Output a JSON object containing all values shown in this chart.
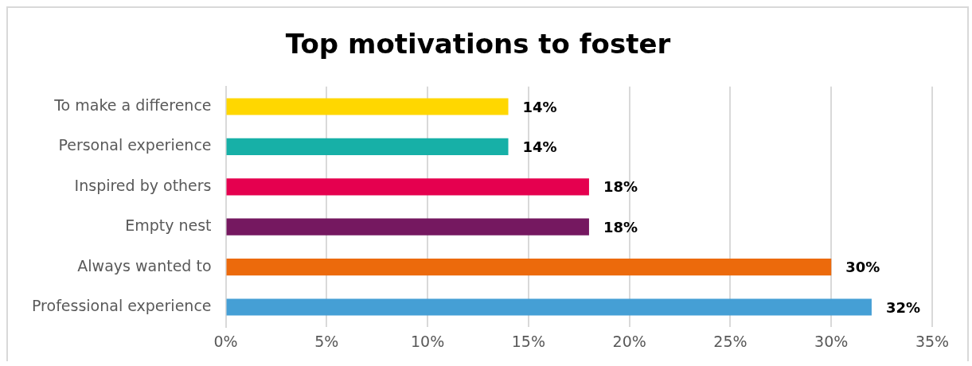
{
  "chart_data": {
    "type": "bar",
    "orientation": "horizontal",
    "title": "Top motivations to foster",
    "categories": [
      "To make a difference",
      "Personal experience",
      "Inspired by others",
      "Empty nest",
      "Always wanted to",
      "Professional experience"
    ],
    "values": [
      14,
      14,
      18,
      18,
      30,
      32
    ],
    "colors": [
      "#ffd700",
      "#17b0a7",
      "#e5004f",
      "#751860",
      "#ec6a0c",
      "#459fd5"
    ],
    "value_labels": [
      "14%",
      "14%",
      "18%",
      "18%",
      "30%",
      "32%"
    ],
    "xlim": [
      0,
      35
    ],
    "xticks": [
      {
        "value": 0,
        "label": "0%"
      },
      {
        "value": 5,
        "label": "5%"
      },
      {
        "value": 10,
        "label": "10%"
      },
      {
        "value": 15,
        "label": "15%"
      },
      {
        "value": 20,
        "label": "20%"
      },
      {
        "value": 25,
        "label": "25%"
      },
      {
        "value": 30,
        "label": "30%"
      },
      {
        "value": 35,
        "label": "35%"
      }
    ],
    "grid": "x",
    "legend": false
  }
}
